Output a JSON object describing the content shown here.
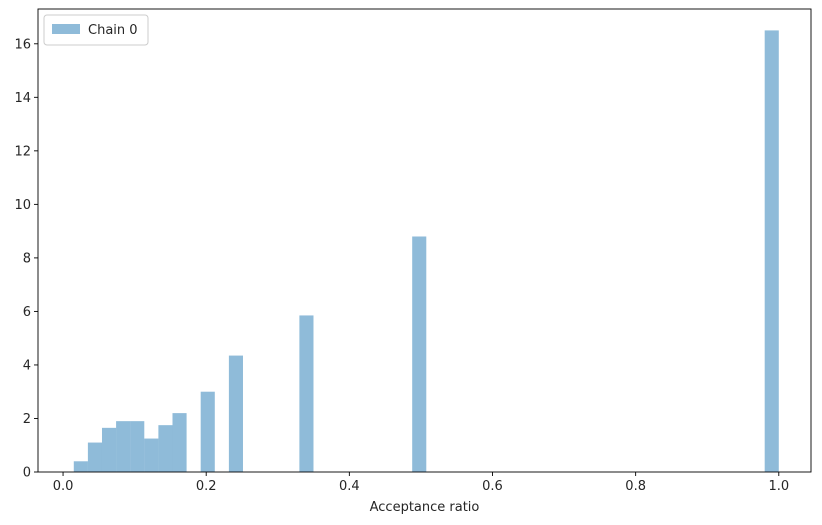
{
  "chart_data": {
    "type": "bar",
    "histogram": true,
    "title": "",
    "xlabel": "Acceptance ratio",
    "ylabel": "",
    "xlim": [
      -0.035,
      1.045
    ],
    "ylim": [
      0,
      17.3
    ],
    "xticks": [
      0.0,
      0.2,
      0.4,
      0.6,
      0.8,
      1.0
    ],
    "xtick_labels": [
      "0.0",
      "0.2",
      "0.4",
      "0.6",
      "0.8",
      "1.0"
    ],
    "yticks": [
      0,
      2,
      4,
      6,
      8,
      10,
      12,
      14,
      16
    ],
    "ytick_labels": [
      "0",
      "2",
      "4",
      "6",
      "8",
      "10",
      "12",
      "14",
      "16"
    ],
    "grid": false,
    "legend_position": "top-left",
    "bar_color": "#1f77b4",
    "bar_alpha": 0.5,
    "series": [
      {
        "name": "Chain 0",
        "bins": [
          {
            "x0": 0.015,
            "x1": 0.0347,
            "value": 0.4
          },
          {
            "x0": 0.0347,
            "x1": 0.0544,
            "value": 1.1
          },
          {
            "x0": 0.0544,
            "x1": 0.0741,
            "value": 1.65
          },
          {
            "x0": 0.0741,
            "x1": 0.0938,
            "value": 1.9
          },
          {
            "x0": 0.0938,
            "x1": 0.1135,
            "value": 1.9
          },
          {
            "x0": 0.1135,
            "x1": 0.1332,
            "value": 1.25
          },
          {
            "x0": 0.1332,
            "x1": 0.1529,
            "value": 1.75
          },
          {
            "x0": 0.1529,
            "x1": 0.1726,
            "value": 2.2
          },
          {
            "x0": 0.1923,
            "x1": 0.212,
            "value": 3.0
          },
          {
            "x0": 0.2317,
            "x1": 0.2514,
            "value": 4.35
          },
          {
            "x0": 0.3302,
            "x1": 0.3499,
            "value": 5.85
          },
          {
            "x0": 0.4878,
            "x1": 0.5075,
            "value": 8.8
          },
          {
            "x0": 0.9803,
            "x1": 1.0,
            "value": 16.5
          }
        ]
      }
    ]
  }
}
